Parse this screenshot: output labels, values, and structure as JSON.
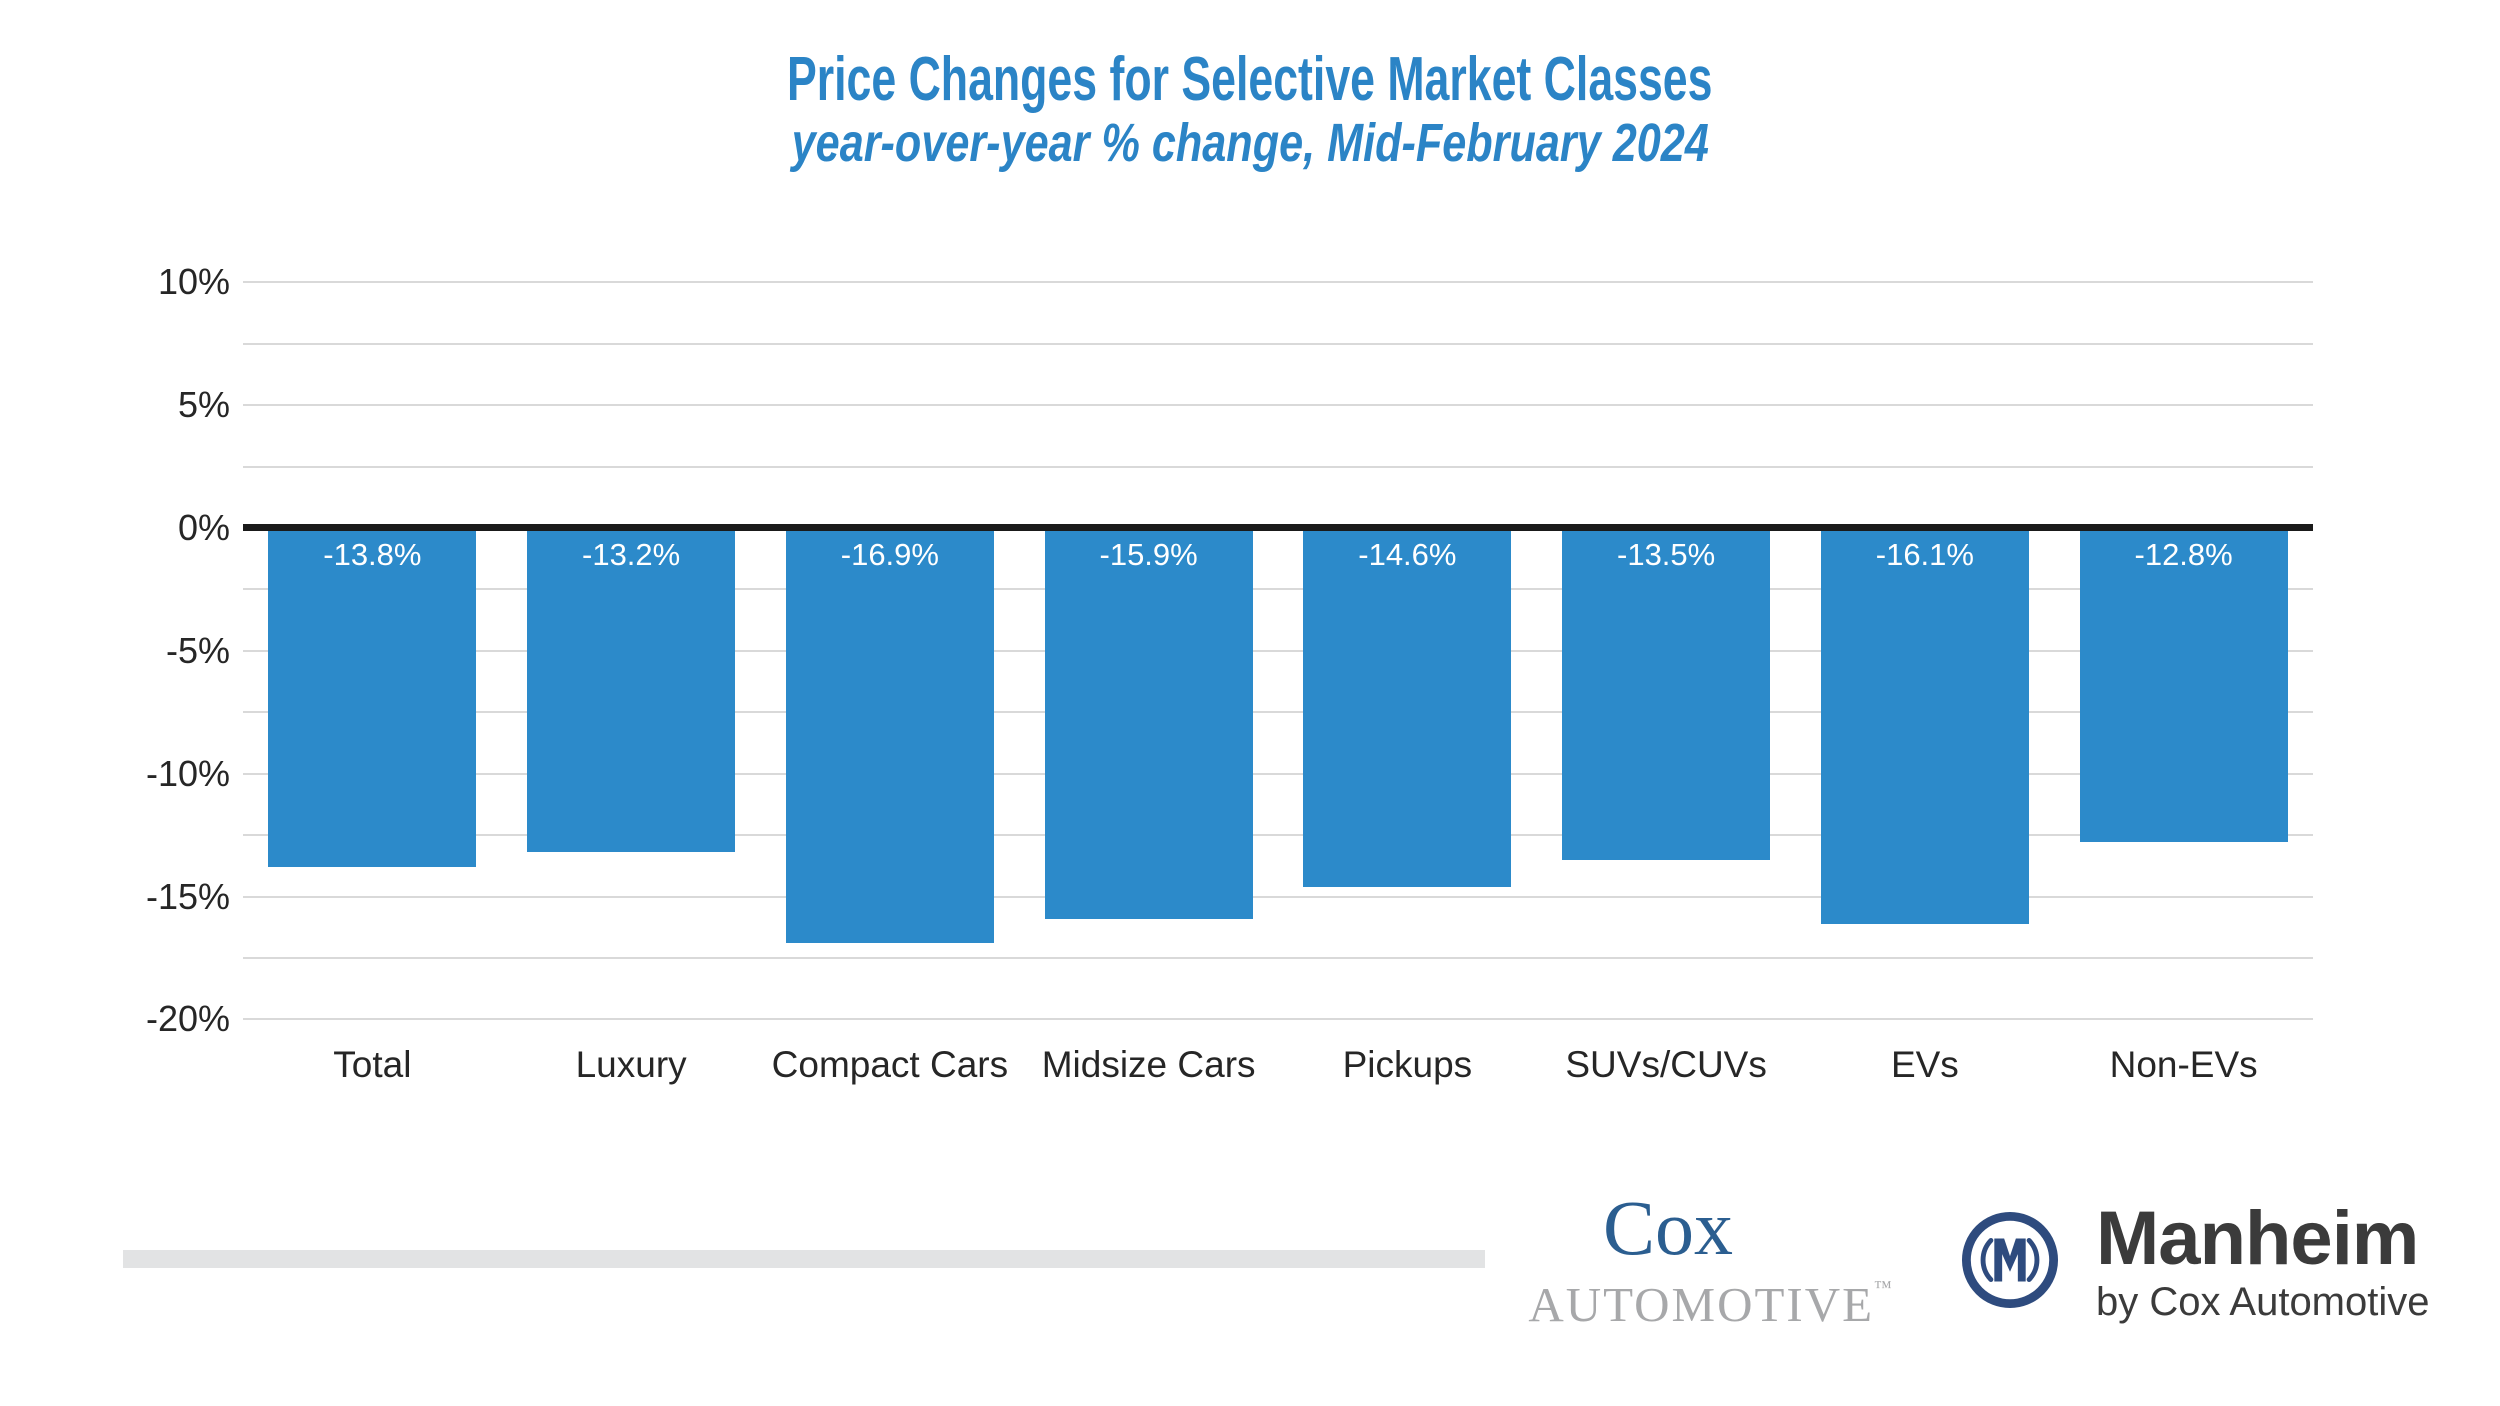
{
  "header": {
    "title": "Price Changes for Selective Market Classes",
    "subtitle": "year-over-year % change, Mid-February 2024"
  },
  "chart_data": {
    "type": "bar",
    "title": "Price Changes for Selective Market Classes",
    "subtitle": "year-over-year % change, Mid-February 2024",
    "categories": [
      "Total",
      "Luxury",
      "Compact Cars",
      "Midsize Cars",
      "Pickups",
      "SUVs/CUVs",
      "EVs",
      "Non-EVs"
    ],
    "values": [
      -13.8,
      -13.2,
      -16.9,
      -15.9,
      -14.6,
      -13.5,
      -16.1,
      -12.8
    ],
    "value_labels": [
      "-13.8%",
      "-13.2%",
      "-16.9%",
      "-15.9%",
      "-14.6%",
      "-13.5%",
      "-16.1%",
      "-12.8%"
    ],
    "y_tick_labels": [
      "10%",
      "5%",
      "0%",
      "-5%",
      "-10%",
      "-15%",
      "-20%"
    ],
    "y_tick_values": [
      10,
      5,
      0,
      -5,
      -10,
      -15,
      -20
    ],
    "ylim": [
      -20,
      10
    ],
    "minor_gridline_step": 2.5,
    "xlabel": "",
    "ylabel": "",
    "grid": "horizontal minor gridlines every 2.5%",
    "legend": "none",
    "bar_color": "#2C8ACA",
    "value_label_color": "#FFFFFF"
  },
  "colors": {
    "title_blue": "#2B84C6",
    "bar_blue": "#2C8ACA",
    "gridline": "#D9D9D9",
    "zero_line": "#1A1A1A",
    "axis_text": "#262626",
    "background": "#FFFFFF",
    "divider_gray": "#E2E3E4",
    "cox_blue": "#2B5E90",
    "cox_gray": "#A7A8AA",
    "manheim_navy": "#2E4B7E",
    "manheim_text": "#3B3B3B"
  },
  "footer": {
    "cox_logo": {
      "wordmark": "Cox",
      "subtext": "AUTOMOTIVE",
      "trademark": "™"
    },
    "manheim_logo": {
      "name": "Manheim",
      "byline": "by Cox Automotive",
      "icon": "manheim-m-circle-icon"
    }
  }
}
